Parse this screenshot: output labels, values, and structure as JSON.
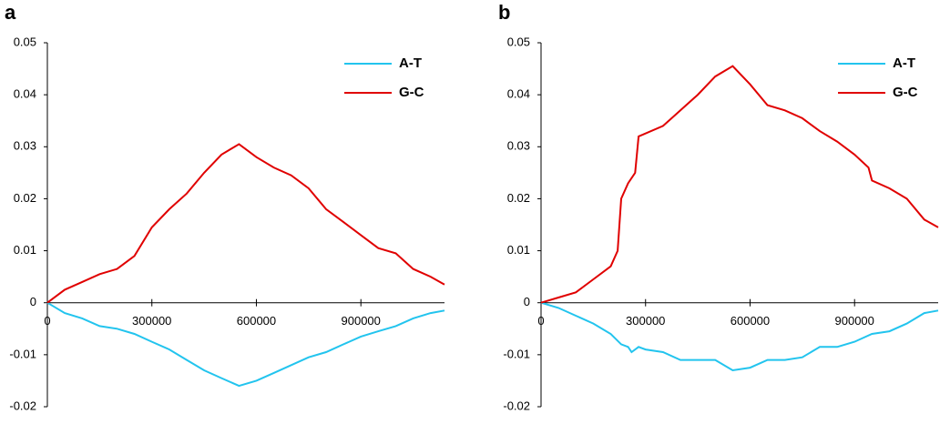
{
  "chart_data": [
    {
      "type": "line",
      "title": "a",
      "xlim": [
        0,
        1140000
      ],
      "ylim": [
        -0.02,
        0.05
      ],
      "xticks": [
        0,
        300000,
        600000,
        900000
      ],
      "yticks": [
        -0.02,
        -0.01,
        0,
        0.01,
        0.02,
        0.03,
        0.04,
        0.05
      ],
      "legend": "upper right",
      "series": [
        {
          "name": "A-T",
          "color": "#22c4ee",
          "x": [
            0,
            50000,
            100000,
            150000,
            200000,
            250000,
            300000,
            350000,
            400000,
            450000,
            500000,
            550000,
            600000,
            650000,
            700000,
            750000,
            800000,
            850000,
            900000,
            950000,
            1000000,
            1050000,
            1100000,
            1140000
          ],
          "values": [
            0,
            -0.002,
            -0.003,
            -0.0045,
            -0.005,
            -0.006,
            -0.0075,
            -0.009,
            -0.011,
            -0.013,
            -0.0145,
            -0.016,
            -0.015,
            -0.0135,
            -0.012,
            -0.0105,
            -0.0095,
            -0.008,
            -0.0065,
            -0.0055,
            -0.0045,
            -0.003,
            -0.002,
            -0.0015
          ]
        },
        {
          "name": "G-C",
          "color": "#e00000",
          "x": [
            0,
            50000,
            100000,
            150000,
            200000,
            250000,
            300000,
            350000,
            400000,
            450000,
            500000,
            550000,
            600000,
            650000,
            700000,
            750000,
            800000,
            850000,
            900000,
            950000,
            1000000,
            1050000,
            1100000,
            1140000
          ],
          "values": [
            0,
            0.0025,
            0.004,
            0.0055,
            0.0065,
            0.009,
            0.0145,
            0.018,
            0.021,
            0.025,
            0.0285,
            0.0305,
            0.028,
            0.026,
            0.0245,
            0.022,
            0.018,
            0.0155,
            0.013,
            0.0105,
            0.0095,
            0.0065,
            0.005,
            0.0035
          ]
        }
      ]
    },
    {
      "type": "line",
      "title": "b",
      "xlim": [
        0,
        1140000
      ],
      "ylim": [
        -0.02,
        0.05
      ],
      "xticks": [
        0,
        300000,
        600000,
        900000
      ],
      "yticks": [
        -0.02,
        -0.01,
        0,
        0.01,
        0.02,
        0.03,
        0.04,
        0.05
      ],
      "legend": "upper right",
      "series": [
        {
          "name": "A-T",
          "color": "#22c4ee",
          "x": [
            0,
            50000,
            100000,
            150000,
            200000,
            230000,
            250000,
            260000,
            280000,
            300000,
            350000,
            400000,
            450000,
            500000,
            550000,
            600000,
            650000,
            700000,
            750000,
            800000,
            850000,
            900000,
            950000,
            1000000,
            1050000,
            1100000,
            1140000
          ],
          "values": [
            0,
            -0.001,
            -0.0025,
            -0.004,
            -0.006,
            -0.008,
            -0.0085,
            -0.0095,
            -0.0085,
            -0.009,
            -0.0095,
            -0.011,
            -0.011,
            -0.011,
            -0.013,
            -0.0125,
            -0.011,
            -0.011,
            -0.0105,
            -0.0085,
            -0.0085,
            -0.0075,
            -0.006,
            -0.0055,
            -0.004,
            -0.002,
            -0.0015
          ]
        },
        {
          "name": "G-C",
          "color": "#e00000",
          "x": [
            0,
            50000,
            100000,
            150000,
            200000,
            220000,
            230000,
            250000,
            270000,
            280000,
            350000,
            400000,
            450000,
            500000,
            550000,
            600000,
            650000,
            700000,
            750000,
            800000,
            850000,
            900000,
            940000,
            950000,
            1000000,
            1050000,
            1100000,
            1140000
          ],
          "values": [
            0,
            0.001,
            0.002,
            0.0045,
            0.007,
            0.01,
            0.02,
            0.023,
            0.025,
            0.032,
            0.034,
            0.037,
            0.04,
            0.0435,
            0.0455,
            0.042,
            0.038,
            0.037,
            0.0355,
            0.033,
            0.031,
            0.0285,
            0.026,
            0.0235,
            0.022,
            0.02,
            0.016,
            0.0145
          ]
        }
      ]
    }
  ]
}
